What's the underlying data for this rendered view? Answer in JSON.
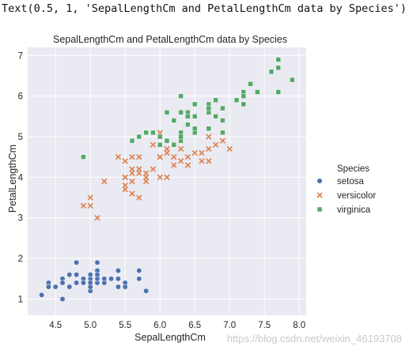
{
  "console_output": "Text(0.5, 1, 'SepalLengthCm and PetalLengthCm data by Species')",
  "watermark": "https://blog.csdn.net/weixin_46193708",
  "colors": {
    "setosa": "#4c72b0",
    "versicolor": "#dd8452",
    "virginica": "#55a868",
    "panel": "#eaeaf2",
    "grid": "#ffffff"
  },
  "chart_data": {
    "type": "scatter",
    "title": "SepalLengthCm and PetalLengthCm data by Species",
    "xlabel": "SepalLengthCm",
    "ylabel": "PetalLengthCm",
    "xlim": [
      4.1,
      8.1
    ],
    "ylim": [
      0.6,
      7.2
    ],
    "xticks": [
      "4.5",
      "5.0",
      "5.5",
      "6.0",
      "6.5",
      "7.0",
      "7.5",
      "8.0"
    ],
    "yticks": [
      "1",
      "2",
      "3",
      "4",
      "5",
      "6",
      "7"
    ],
    "grid": true,
    "legend": {
      "title": "Species",
      "position": "right"
    },
    "series": [
      {
        "name": "setosa",
        "marker": "circle",
        "color": "#4c72b0",
        "points": [
          [
            5.1,
            1.4
          ],
          [
            4.9,
            1.4
          ],
          [
            4.7,
            1.3
          ],
          [
            4.6,
            1.5
          ],
          [
            5.0,
            1.4
          ],
          [
            5.4,
            1.7
          ],
          [
            4.6,
            1.4
          ],
          [
            5.0,
            1.5
          ],
          [
            4.4,
            1.4
          ],
          [
            4.9,
            1.5
          ],
          [
            5.4,
            1.5
          ],
          [
            4.8,
            1.6
          ],
          [
            4.8,
            1.4
          ],
          [
            4.3,
            1.1
          ],
          [
            5.8,
            1.2
          ],
          [
            5.7,
            1.5
          ],
          [
            5.4,
            1.3
          ],
          [
            5.1,
            1.4
          ],
          [
            5.7,
            1.7
          ],
          [
            5.1,
            1.5
          ],
          [
            5.4,
            1.7
          ],
          [
            5.1,
            1.5
          ],
          [
            4.6,
            1.0
          ],
          [
            5.1,
            1.7
          ],
          [
            4.8,
            1.9
          ],
          [
            5.0,
            1.6
          ],
          [
            5.0,
            1.6
          ],
          [
            5.2,
            1.5
          ],
          [
            5.2,
            1.4
          ],
          [
            4.7,
            1.6
          ],
          [
            4.8,
            1.6
          ],
          [
            5.4,
            1.5
          ],
          [
            5.2,
            1.5
          ],
          [
            5.5,
            1.4
          ],
          [
            4.9,
            1.5
          ],
          [
            5.0,
            1.2
          ],
          [
            5.5,
            1.3
          ],
          [
            4.9,
            1.4
          ],
          [
            4.4,
            1.3
          ],
          [
            5.1,
            1.5
          ],
          [
            5.0,
            1.3
          ],
          [
            4.5,
            1.3
          ],
          [
            4.4,
            1.3
          ],
          [
            5.0,
            1.6
          ],
          [
            5.1,
            1.9
          ],
          [
            4.8,
            1.4
          ],
          [
            5.1,
            1.6
          ],
          [
            4.6,
            1.4
          ],
          [
            5.3,
            1.5
          ],
          [
            5.0,
            1.4
          ]
        ]
      },
      {
        "name": "versicolor",
        "marker": "x",
        "color": "#dd8452",
        "points": [
          [
            7.0,
            4.7
          ],
          [
            6.4,
            4.5
          ],
          [
            6.9,
            4.9
          ],
          [
            5.5,
            4.0
          ],
          [
            6.5,
            4.6
          ],
          [
            5.7,
            4.5
          ],
          [
            6.3,
            4.7
          ],
          [
            4.9,
            3.3
          ],
          [
            6.6,
            4.6
          ],
          [
            5.2,
            3.9
          ],
          [
            5.0,
            3.5
          ],
          [
            5.9,
            4.2
          ],
          [
            6.0,
            4.0
          ],
          [
            6.1,
            4.7
          ],
          [
            5.6,
            3.6
          ],
          [
            6.7,
            4.4
          ],
          [
            5.6,
            4.5
          ],
          [
            5.8,
            4.1
          ],
          [
            6.2,
            4.5
          ],
          [
            5.6,
            3.9
          ],
          [
            5.9,
            4.8
          ],
          [
            6.1,
            4.0
          ],
          [
            6.3,
            4.9
          ],
          [
            6.1,
            4.7
          ],
          [
            6.4,
            4.3
          ],
          [
            6.6,
            4.4
          ],
          [
            6.8,
            4.8
          ],
          [
            6.7,
            5.0
          ],
          [
            6.0,
            4.5
          ],
          [
            5.7,
            3.5
          ],
          [
            5.5,
            3.8
          ],
          [
            5.5,
            3.7
          ],
          [
            5.8,
            3.9
          ],
          [
            6.0,
            5.1
          ],
          [
            5.4,
            4.5
          ],
          [
            6.0,
            4.5
          ],
          [
            6.7,
            4.7
          ],
          [
            6.3,
            4.4
          ],
          [
            5.6,
            4.1
          ],
          [
            5.5,
            4.0
          ],
          [
            5.5,
            4.4
          ],
          [
            6.1,
            4.6
          ],
          [
            5.8,
            4.0
          ],
          [
            5.0,
            3.3
          ],
          [
            5.6,
            4.2
          ],
          [
            5.7,
            4.2
          ],
          [
            5.7,
            4.2
          ],
          [
            6.2,
            4.3
          ],
          [
            5.1,
            3.0
          ],
          [
            5.7,
            4.1
          ]
        ]
      },
      {
        "name": "virginica",
        "marker": "square",
        "color": "#55a868",
        "points": [
          [
            6.3,
            6.0
          ],
          [
            5.8,
            5.1
          ],
          [
            7.1,
            5.9
          ],
          [
            6.3,
            5.6
          ],
          [
            6.5,
            5.8
          ],
          [
            7.6,
            6.6
          ],
          [
            4.9,
            4.5
          ],
          [
            7.3,
            6.3
          ],
          [
            6.7,
            5.8
          ],
          [
            7.2,
            6.1
          ],
          [
            6.5,
            5.1
          ],
          [
            6.4,
            5.3
          ],
          [
            6.8,
            5.5
          ],
          [
            5.7,
            5.0
          ],
          [
            5.8,
            5.1
          ],
          [
            6.4,
            5.3
          ],
          [
            6.5,
            5.5
          ],
          [
            7.7,
            6.7
          ],
          [
            7.7,
            6.9
          ],
          [
            6.0,
            5.0
          ],
          [
            6.9,
            5.7
          ],
          [
            5.6,
            4.9
          ],
          [
            7.7,
            6.7
          ],
          [
            6.3,
            4.9
          ],
          [
            6.7,
            5.7
          ],
          [
            7.2,
            6.0
          ],
          [
            6.2,
            4.8
          ],
          [
            6.1,
            4.9
          ],
          [
            6.4,
            5.6
          ],
          [
            7.2,
            5.8
          ],
          [
            7.4,
            6.1
          ],
          [
            7.9,
            6.4
          ],
          [
            6.4,
            5.6
          ],
          [
            6.3,
            5.1
          ],
          [
            6.1,
            5.6
          ],
          [
            7.7,
            6.1
          ],
          [
            6.3,
            5.6
          ],
          [
            6.4,
            5.5
          ],
          [
            6.0,
            4.8
          ],
          [
            6.9,
            5.4
          ],
          [
            6.7,
            5.6
          ],
          [
            6.9,
            5.1
          ],
          [
            5.8,
            5.1
          ],
          [
            6.8,
            5.9
          ],
          [
            6.7,
            5.7
          ],
          [
            6.7,
            5.2
          ],
          [
            6.3,
            5.0
          ],
          [
            6.5,
            5.2
          ],
          [
            6.2,
            5.4
          ],
          [
            5.9,
            5.1
          ]
        ]
      }
    ]
  }
}
